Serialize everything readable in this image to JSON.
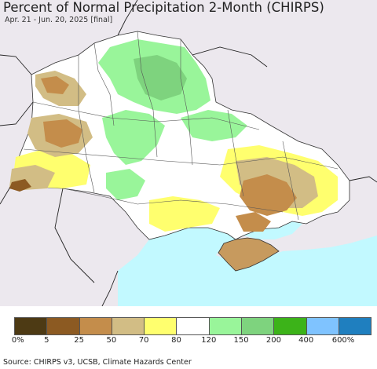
{
  "title": "Percent of Normal Precipitation 2-Month (CHIRPS)",
  "subtitle": "Apr. 21 - Jun. 20, 2025 [final]",
  "source": "Source: CHIRPS v3, UCSB, Climate Hazards Center",
  "legend": {
    "colors": [
      "#4d3a14",
      "#8c5a22",
      "#c48d4b",
      "#d2bd85",
      "#ffff6e",
      "#ffffff",
      "#99f59a",
      "#7ed37e",
      "#3cb319",
      "#7fc3ff",
      "#1f7fbf"
    ],
    "labels": [
      "0%",
      "5",
      "25",
      "50",
      "70",
      "80",
      "120",
      "150",
      "200",
      "400",
      "600%"
    ]
  },
  "map": {
    "background": "#ece8ee",
    "sea_color": "#c2f9ff",
    "land_base": "#ffffff"
  }
}
